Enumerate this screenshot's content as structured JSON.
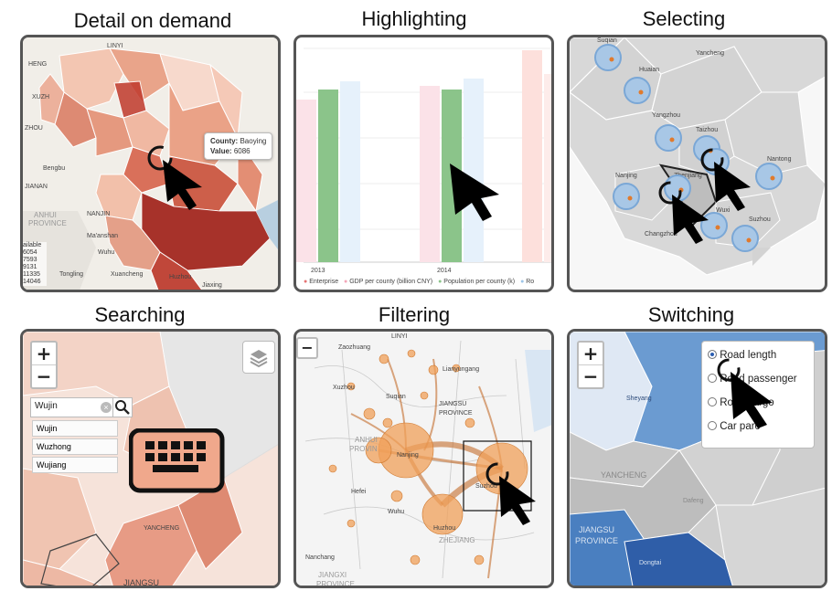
{
  "titles": {
    "detail": "Detail on demand",
    "highlight": "Highlighting",
    "select": "Selecting",
    "search": "Searching",
    "filter": "Filtering",
    "switch": "Switching"
  },
  "detail_panel": {
    "tooltip": {
      "county_label": "County:",
      "county_value": "Baoying",
      "value_label": "Value:",
      "value_value": "6086"
    },
    "legend": {
      "title": "ailable",
      "values": [
        "6054",
        "7593",
        "9131",
        "11335",
        "14046"
      ]
    },
    "places": [
      "LINYI",
      "HENG",
      "XUZH",
      "ZHOU",
      "Bengbu",
      "JIANAN",
      "ANHUI",
      "PROVINCE",
      "NANJIN",
      "Ma'anshan",
      "Wuhu",
      "Tongling",
      "Xuancheng",
      "Huzhou",
      "Jiaxing"
    ]
  },
  "highlight_panel": {
    "x_ticks": [
      "2013",
      "2014"
    ],
    "legend": [
      "Enterprise",
      "GDP per county (billion CNY)",
      "Population per county (k)",
      "Ro"
    ],
    "colors": {
      "enterprise": "#e57373",
      "gdp": "#f4a7b9",
      "population": "#8bc48a",
      "road": "#9ec5e8"
    }
  },
  "select_panel": {
    "cities": [
      "Suqian",
      "Yancheng",
      "Huaian",
      "Yangzhou",
      "Taizhou",
      "Nantong",
      "Nanjing",
      "Zhenjiang",
      "Wuxi",
      "Changzhou",
      "Suzhou"
    ]
  },
  "search_panel": {
    "zoom_in": "+",
    "zoom_out": "−",
    "search_value": "Wujin",
    "results": [
      "Wujin",
      "Wuzhong",
      "Wujiang"
    ],
    "places": [
      "YANCHENG",
      "JIANGSU"
    ]
  },
  "filter_panel": {
    "zoom_out": "−",
    "places": [
      "LINYI",
      "Zaozhuang",
      "Xuzhou",
      "Lianyungang",
      "Suqian",
      "JIANGSU",
      "PROVINCE",
      "ANHUI",
      "PROVIN",
      "Hefei",
      "Nanjing",
      "Suzhou",
      "Huzhou",
      "Nanchang",
      "JIANGXI",
      "PROVINCE",
      "ZHEJIANG",
      "Wuhu"
    ]
  },
  "switch_panel": {
    "zoom_in": "+",
    "zoom_out": "−",
    "options": [
      "Road length",
      "Road passenger",
      "Road cargo",
      "Car parc"
    ],
    "selected_index": 0,
    "places": [
      "Sheyang",
      "YANCHENG",
      "Dafeng",
      "JIANGSU",
      "PROVINCE",
      "Dongtai"
    ]
  }
}
